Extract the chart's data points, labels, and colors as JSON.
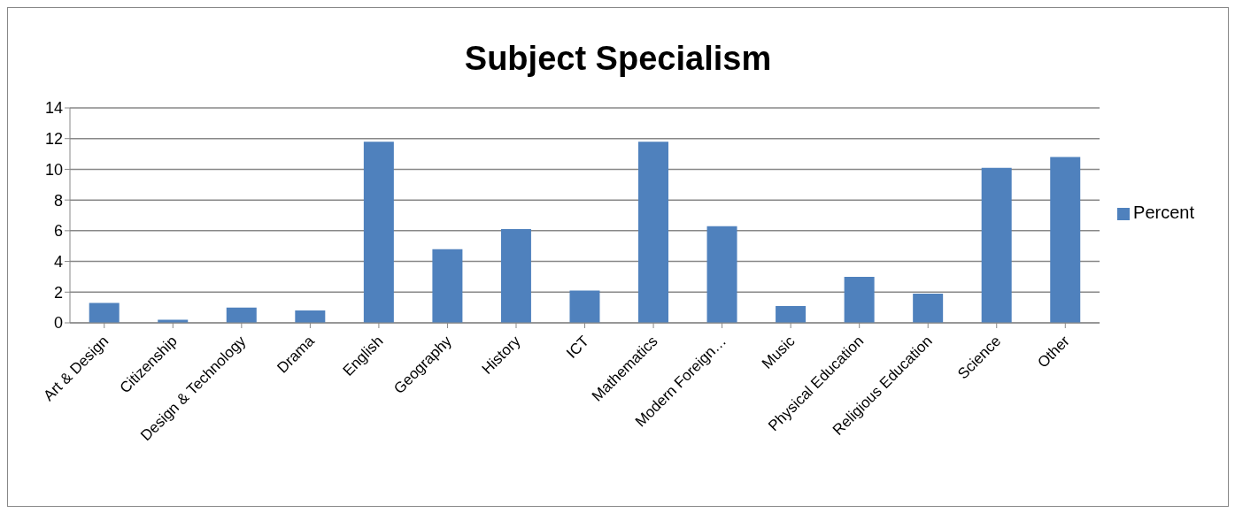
{
  "chart_data": {
    "type": "bar",
    "title": "Subject Specialism",
    "categories": [
      "Art & Design",
      "Citizenship",
      "Design & Technology",
      "Drama",
      "English",
      "Geography",
      "History",
      "ICT",
      "Mathematics",
      "Modern Foreign…",
      "Music",
      "Physical Education",
      "Religious Education",
      "Science",
      "Other"
    ],
    "series": [
      {
        "name": "Percent",
        "color": "#4f81bd",
        "values": [
          1.3,
          0.2,
          1.0,
          0.8,
          11.8,
          4.8,
          6.1,
          2.1,
          11.8,
          6.3,
          1.1,
          3.0,
          1.9,
          10.1,
          10.8
        ]
      }
    ],
    "ylim": [
      0,
      14
    ],
    "yticks": [
      0,
      2,
      4,
      6,
      8,
      10,
      12,
      14
    ],
    "grid": "y",
    "legend": "right"
  }
}
